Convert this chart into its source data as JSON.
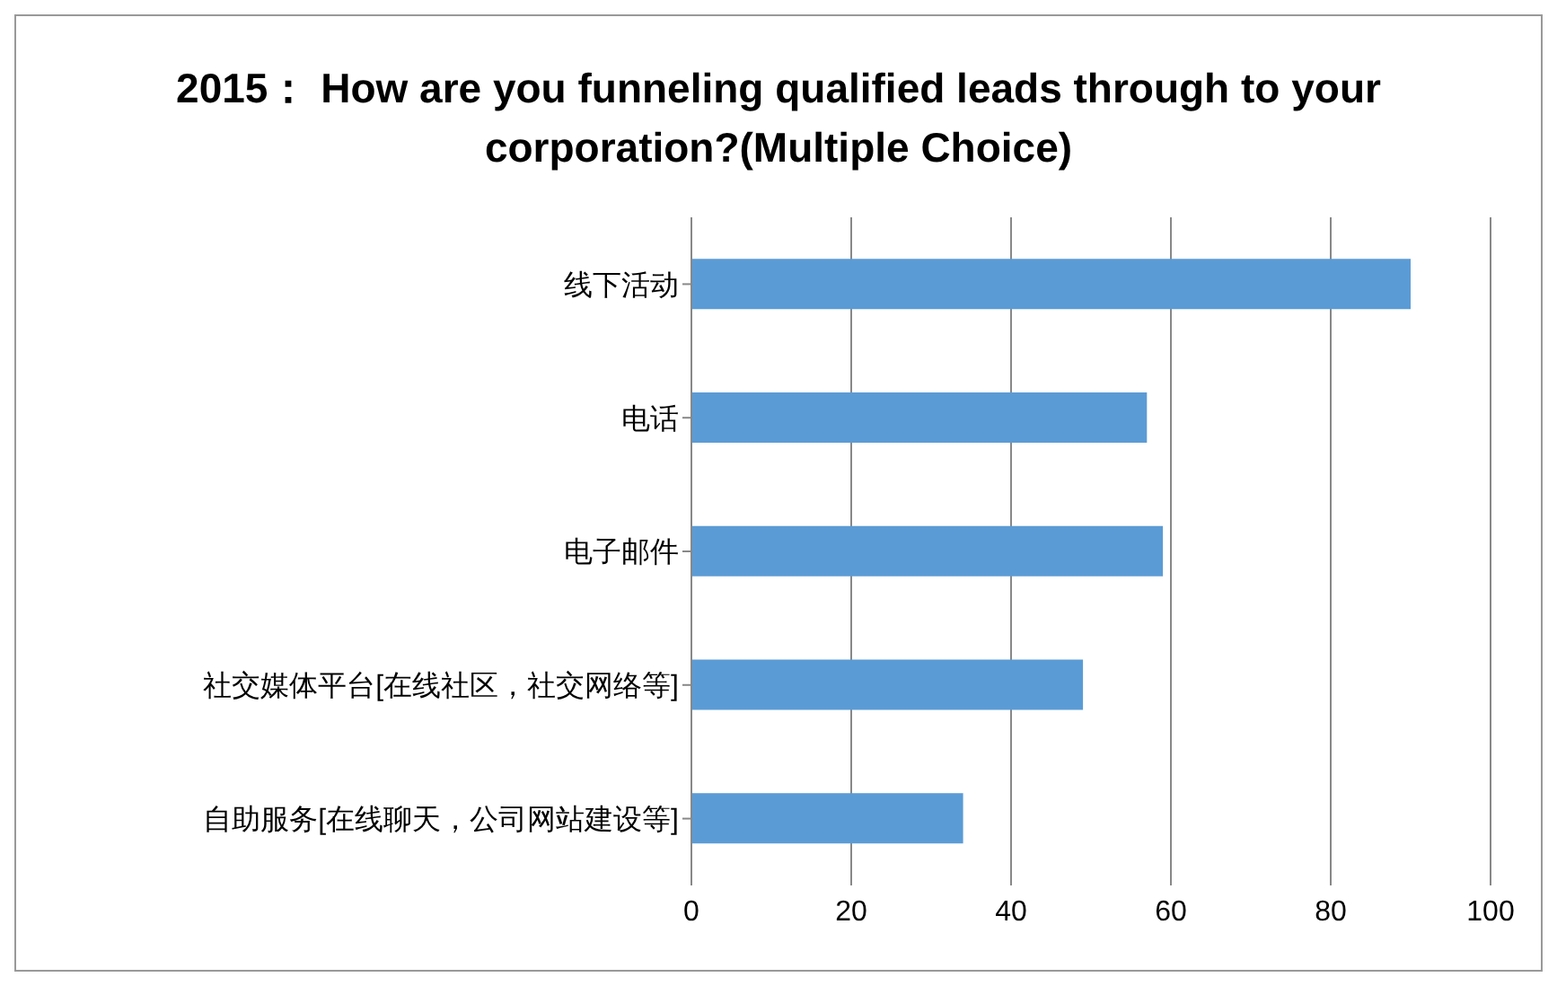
{
  "chart_data": {
    "type": "bar",
    "orientation": "horizontal",
    "title": "2015： How are you funneling qualified leads through to your corporation?(Multiple Choice)",
    "categories": [
      "线下活动",
      "电话",
      "电子邮件",
      "社交媒体平台[在线社区，社交网络等]",
      "自助服务[在线聊天，公司网站建设等]"
    ],
    "values": [
      90,
      57,
      59,
      49,
      34
    ],
    "color": "#5b9bd5",
    "xlim": [
      0,
      100
    ],
    "xticks": [
      0,
      20,
      40,
      60,
      80,
      100
    ],
    "grid": "x",
    "legend": false
  }
}
